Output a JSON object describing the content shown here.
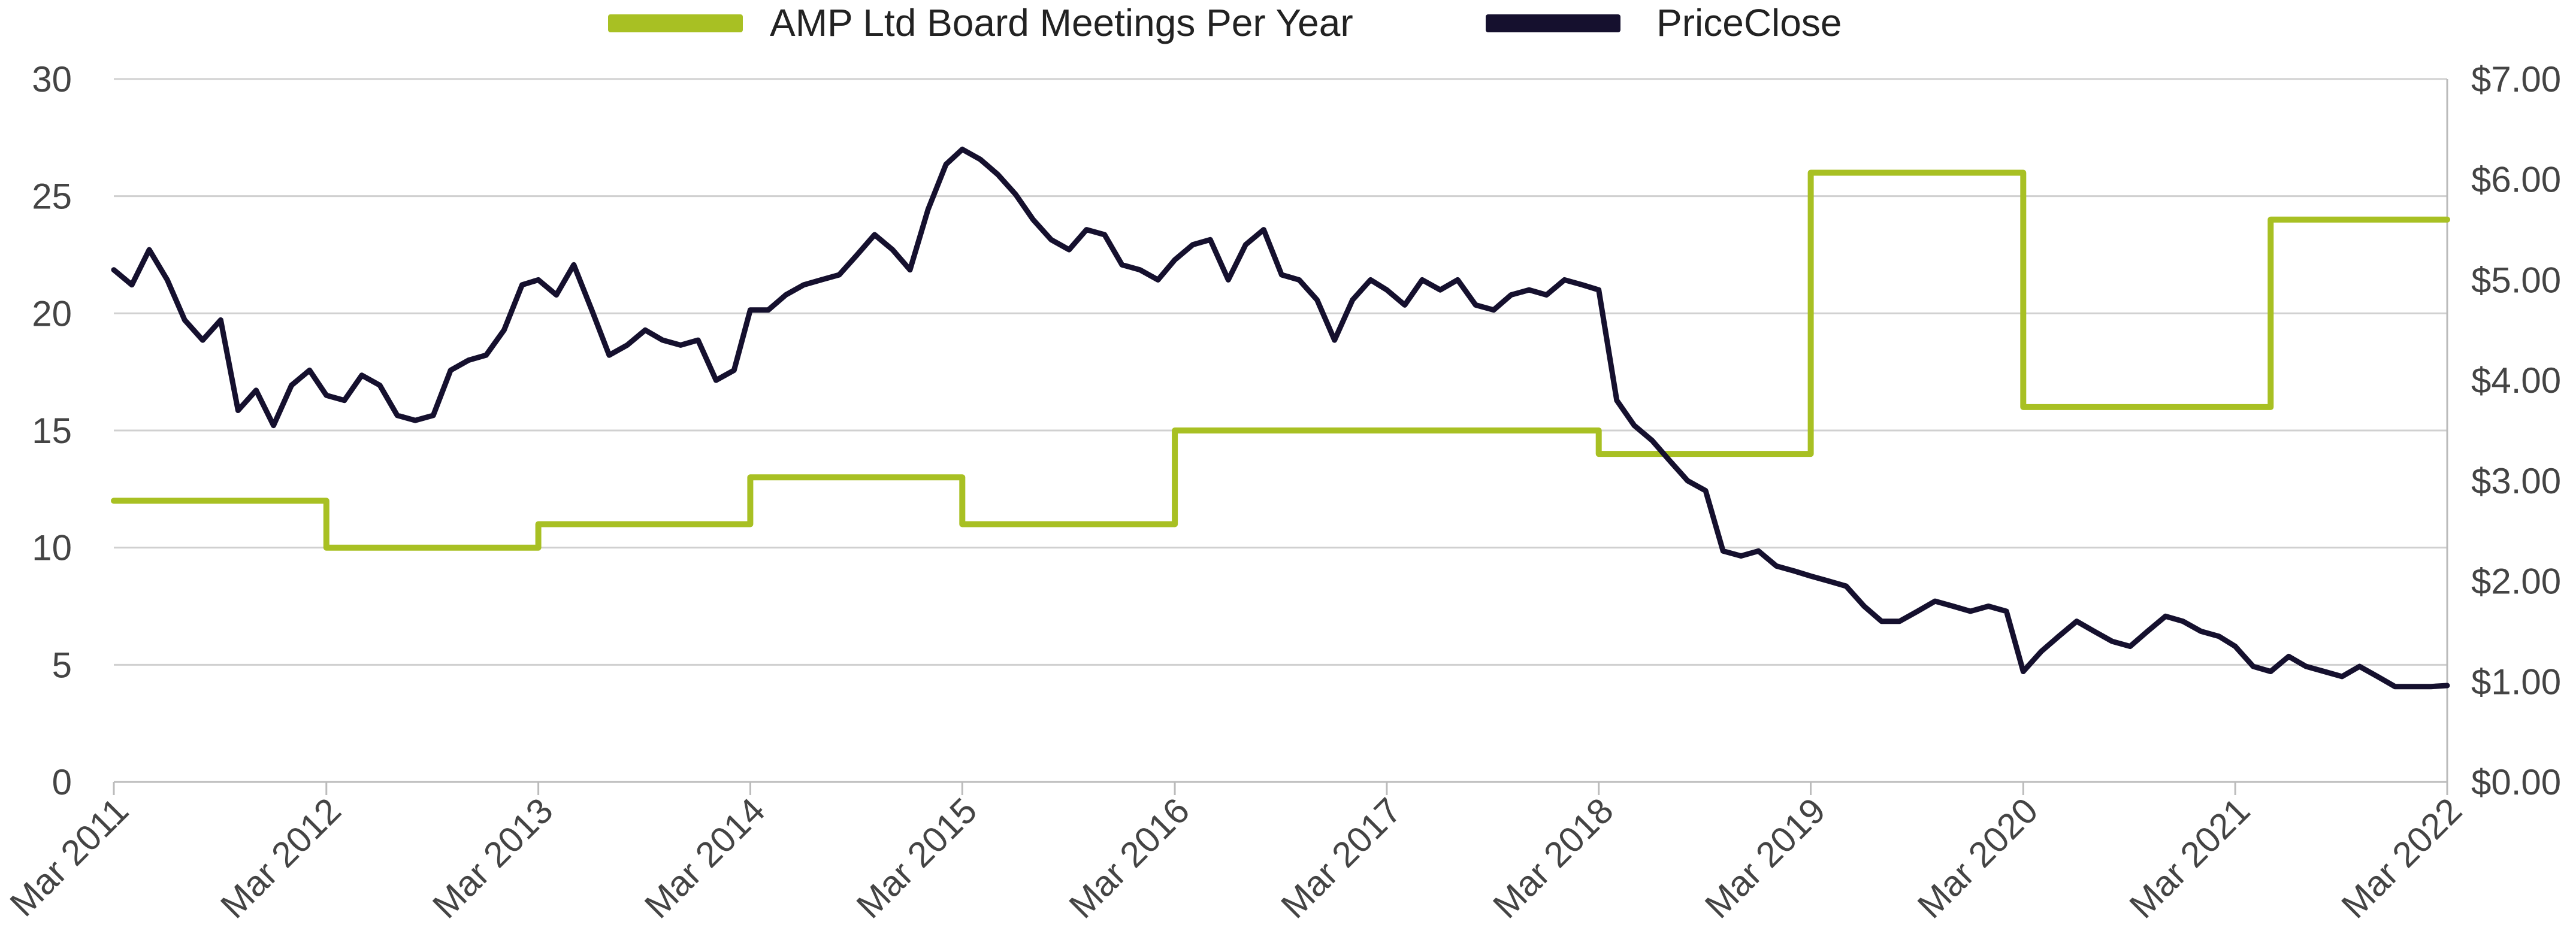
{
  "chart_data": {
    "type": "line",
    "legend_position": "top",
    "grid": true,
    "series": [
      {
        "name": "AMP Ltd Board Meetings Per Year",
        "axis": "left",
        "step": true,
        "color": "#a8c023",
        "points": [
          [
            "2011-03-01",
            12
          ],
          [
            "2012-03-01",
            10
          ],
          [
            "2013-03-01",
            11
          ],
          [
            "2014-03-01",
            13
          ],
          [
            "2015-03-01",
            11
          ],
          [
            "2016-03-01",
            15
          ],
          [
            "2018-03-01",
            14
          ],
          [
            "2019-03-01",
            26
          ],
          [
            "2020-03-01",
            16
          ],
          [
            "2021-05-01",
            24
          ],
          [
            "2022-03-01",
            24
          ]
        ]
      },
      {
        "name": "PriceClose",
        "axis": "right",
        "step": false,
        "color": "#15102e",
        "points": [
          [
            "2011-03-01",
            5.1
          ],
          [
            "2011-04-01",
            4.95
          ],
          [
            "2011-05-01",
            5.3
          ],
          [
            "2011-06-01",
            5.0
          ],
          [
            "2011-07-01",
            4.6
          ],
          [
            "2011-08-01",
            4.4
          ],
          [
            "2011-09-01",
            4.6
          ],
          [
            "2011-10-01",
            3.7
          ],
          [
            "2011-11-01",
            3.9
          ],
          [
            "2011-12-01",
            3.55
          ],
          [
            "2012-01-01",
            3.95
          ],
          [
            "2012-02-01",
            4.1
          ],
          [
            "2012-03-01",
            3.85
          ],
          [
            "2012-04-01",
            3.8
          ],
          [
            "2012-05-01",
            4.05
          ],
          [
            "2012-06-01",
            3.95
          ],
          [
            "2012-07-01",
            3.65
          ],
          [
            "2012-08-01",
            3.6
          ],
          [
            "2012-09-01",
            3.65
          ],
          [
            "2012-10-01",
            4.1
          ],
          [
            "2012-11-01",
            4.2
          ],
          [
            "2012-12-01",
            4.25
          ],
          [
            "2013-01-01",
            4.5
          ],
          [
            "2013-02-01",
            4.95
          ],
          [
            "2013-03-01",
            5.0
          ],
          [
            "2013-04-01",
            4.85
          ],
          [
            "2013-05-01",
            5.15
          ],
          [
            "2013-06-01",
            4.7
          ],
          [
            "2013-07-01",
            4.25
          ],
          [
            "2013-08-01",
            4.35
          ],
          [
            "2013-09-01",
            4.5
          ],
          [
            "2013-10-01",
            4.4
          ],
          [
            "2013-11-01",
            4.35
          ],
          [
            "2013-12-01",
            4.4
          ],
          [
            "2014-01-01",
            4.0
          ],
          [
            "2014-02-01",
            4.1
          ],
          [
            "2014-03-01",
            4.7
          ],
          [
            "2014-04-01",
            4.7
          ],
          [
            "2014-05-01",
            4.85
          ],
          [
            "2014-06-01",
            4.95
          ],
          [
            "2014-07-01",
            5.0
          ],
          [
            "2014-08-01",
            5.05
          ],
          [
            "2014-09-01",
            5.25
          ],
          [
            "2014-10-01",
            5.45
          ],
          [
            "2014-11-01",
            5.3
          ],
          [
            "2014-12-01",
            5.1
          ],
          [
            "2015-01-01",
            5.7
          ],
          [
            "2015-02-01",
            6.15
          ],
          [
            "2015-03-01",
            6.3
          ],
          [
            "2015-04-01",
            6.2
          ],
          [
            "2015-05-01",
            6.05
          ],
          [
            "2015-06-01",
            5.85
          ],
          [
            "2015-07-01",
            5.6
          ],
          [
            "2015-08-01",
            5.4
          ],
          [
            "2015-09-01",
            5.3
          ],
          [
            "2015-10-01",
            5.5
          ],
          [
            "2015-11-01",
            5.45
          ],
          [
            "2015-12-01",
            5.15
          ],
          [
            "2016-01-01",
            5.1
          ],
          [
            "2016-02-01",
            5.0
          ],
          [
            "2016-03-01",
            5.2
          ],
          [
            "2016-04-01",
            5.35
          ],
          [
            "2016-05-01",
            5.4
          ],
          [
            "2016-06-01",
            5.0
          ],
          [
            "2016-07-01",
            5.35
          ],
          [
            "2016-08-01",
            5.5
          ],
          [
            "2016-09-01",
            5.05
          ],
          [
            "2016-10-01",
            5.0
          ],
          [
            "2016-11-01",
            4.8
          ],
          [
            "2016-12-01",
            4.4
          ],
          [
            "2017-01-01",
            4.8
          ],
          [
            "2017-02-01",
            5.0
          ],
          [
            "2017-03-01",
            4.9
          ],
          [
            "2017-04-01",
            4.75
          ],
          [
            "2017-05-01",
            5.0
          ],
          [
            "2017-06-01",
            4.9
          ],
          [
            "2017-07-01",
            5.0
          ],
          [
            "2017-08-01",
            4.75
          ],
          [
            "2017-09-01",
            4.7
          ],
          [
            "2017-10-01",
            4.85
          ],
          [
            "2017-11-01",
            4.9
          ],
          [
            "2017-12-01",
            4.85
          ],
          [
            "2018-01-01",
            5.0
          ],
          [
            "2018-02-01",
            4.95
          ],
          [
            "2018-03-01",
            4.9
          ],
          [
            "2018-04-01",
            3.8
          ],
          [
            "2018-05-01",
            3.55
          ],
          [
            "2018-06-01",
            3.4
          ],
          [
            "2018-07-01",
            3.2
          ],
          [
            "2018-08-01",
            3.0
          ],
          [
            "2018-09-01",
            2.9
          ],
          [
            "2018-10-01",
            2.3
          ],
          [
            "2018-11-01",
            2.25
          ],
          [
            "2018-12-01",
            2.3
          ],
          [
            "2019-01-01",
            2.15
          ],
          [
            "2019-02-01",
            2.1
          ],
          [
            "2019-03-01",
            2.05
          ],
          [
            "2019-04-01",
            2.0
          ],
          [
            "2019-05-01",
            1.95
          ],
          [
            "2019-06-01",
            1.75
          ],
          [
            "2019-07-01",
            1.6
          ],
          [
            "2019-08-01",
            1.6
          ],
          [
            "2019-09-01",
            1.7
          ],
          [
            "2019-10-01",
            1.8
          ],
          [
            "2019-11-01",
            1.75
          ],
          [
            "2019-12-01",
            1.7
          ],
          [
            "2020-01-01",
            1.75
          ],
          [
            "2020-02-01",
            1.7
          ],
          [
            "2020-03-01",
            1.1
          ],
          [
            "2020-04-01",
            1.3
          ],
          [
            "2020-05-01",
            1.45
          ],
          [
            "2020-06-01",
            1.6
          ],
          [
            "2020-07-01",
            1.5
          ],
          [
            "2020-08-01",
            1.4
          ],
          [
            "2020-09-01",
            1.35
          ],
          [
            "2020-10-01",
            1.5
          ],
          [
            "2020-11-01",
            1.65
          ],
          [
            "2020-12-01",
            1.6
          ],
          [
            "2021-01-01",
            1.5
          ],
          [
            "2021-02-01",
            1.45
          ],
          [
            "2021-03-01",
            1.35
          ],
          [
            "2021-04-01",
            1.15
          ],
          [
            "2021-05-01",
            1.1
          ],
          [
            "2021-06-01",
            1.25
          ],
          [
            "2021-07-01",
            1.15
          ],
          [
            "2021-08-01",
            1.1
          ],
          [
            "2021-09-01",
            1.05
          ],
          [
            "2021-10-01",
            1.15
          ],
          [
            "2021-11-01",
            1.05
          ],
          [
            "2021-12-01",
            0.95
          ],
          [
            "2022-01-01",
            0.95
          ],
          [
            "2022-02-01",
            0.95
          ],
          [
            "2022-03-01",
            0.96
          ]
        ]
      }
    ],
    "x_axis": {
      "type": "date",
      "range": [
        "2011-03-01",
        "2022-03-01"
      ],
      "ticks": [
        {
          "date": "2011-03-01",
          "label": "Mar 2011"
        },
        {
          "date": "2012-03-01",
          "label": "Mar 2012"
        },
        {
          "date": "2013-03-01",
          "label": "Mar 2013"
        },
        {
          "date": "2014-03-01",
          "label": "Mar 2014"
        },
        {
          "date": "2015-03-01",
          "label": "Mar 2015"
        },
        {
          "date": "2016-03-01",
          "label": "Mar 2016"
        },
        {
          "date": "2017-03-01",
          "label": "Mar 2017"
        },
        {
          "date": "2018-03-01",
          "label": "Mar 2018"
        },
        {
          "date": "2019-03-01",
          "label": "Mar 2019"
        },
        {
          "date": "2020-03-01",
          "label": "Mar 2020"
        },
        {
          "date": "2021-03-01",
          "label": "Mar 2021"
        },
        {
          "date": "2022-03-01",
          "label": "Mar 2022"
        }
      ],
      "label_rotation": -45
    },
    "y_left": {
      "range": [
        0,
        30
      ],
      "ticks": [
        0,
        5,
        10,
        15,
        20,
        25,
        30
      ],
      "tick_labels": [
        "0",
        "5",
        "10",
        "15",
        "20",
        "25",
        "30"
      ]
    },
    "y_right": {
      "range": [
        0,
        7
      ],
      "ticks": [
        0,
        1,
        2,
        3,
        4,
        5,
        6,
        7
      ],
      "tick_labels": [
        "$0.00",
        "$1.00",
        "$2.00",
        "$3.00",
        "$4.00",
        "$5.00",
        "$6.00",
        "$7.00"
      ]
    },
    "colors": {
      "grid": "#d0d0d0",
      "axis": "#bbbbbb",
      "tick_text": "#444444",
      "legend_text": "#222222"
    }
  }
}
